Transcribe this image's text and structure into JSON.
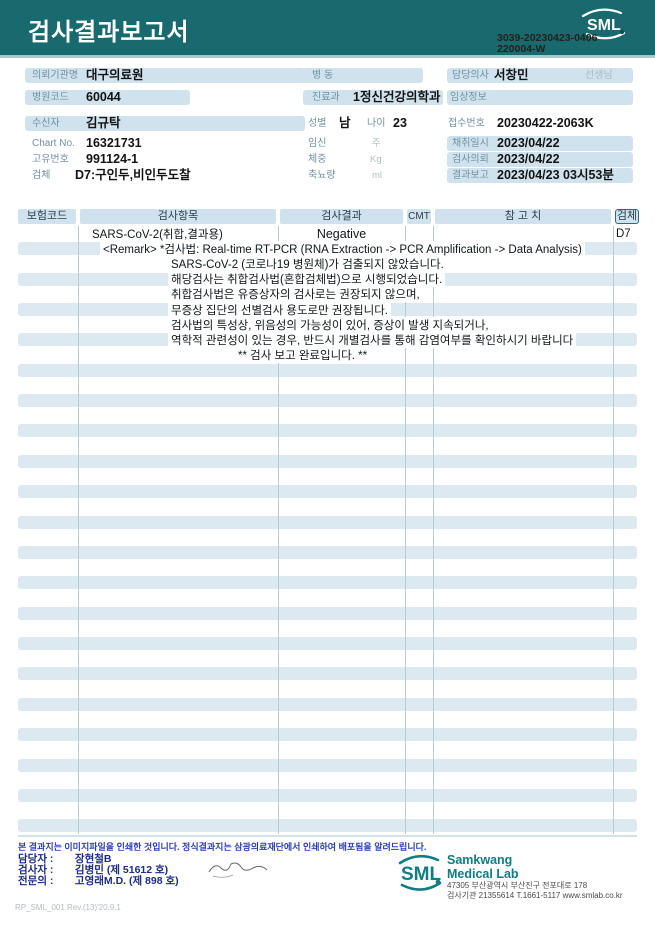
{
  "banner": {
    "title": "검사결과보고서",
    "logo_text": "SML",
    "doc_no_1": "3039-20230423-0406",
    "doc_no_2": "220004-W"
  },
  "fields": {
    "left": {
      "org_label": "의뢰기관명",
      "org_value": "대구의료원",
      "hospital_code_label": "병원코드",
      "hospital_code_value": "60044",
      "recipient_label": "수신자",
      "recipient_value": "김규탁",
      "chart_label": "Chart No.",
      "chart_value": "16321731",
      "uid_label": "고유번호",
      "uid_value": "991124-1",
      "specimen_label": "검체",
      "specimen_value": "D7:구인두,비인두도찰"
    },
    "middle": {
      "ward_label": "병  동",
      "dept_label": "진료과",
      "dept_value": "1정신건강의학과",
      "sex_label": "성별",
      "sex_value": "남",
      "age_label": "나이",
      "age_value": "23",
      "pregnancy_label": "임신",
      "pregnancy_unit": "주",
      "weight_label": "체중",
      "weight_unit": "Kg",
      "urine_label": "축뇨량",
      "urine_unit": "ml"
    },
    "right": {
      "doctor_label": "담당의사",
      "doctor_value": "서창민",
      "doctor_suffix": "선생님",
      "clinical_label": "임상정보",
      "receipt_label": "접수번호",
      "receipt_value": "20230422-2063K",
      "collected_label": "채취일시",
      "collected_value": "2023/04/22",
      "requested_label": "검사의뢰",
      "requested_value": "2023/04/22",
      "reported_label": "결과보고",
      "reported_value": "2023/04/23 03시53분"
    }
  },
  "table": {
    "headers": [
      "보험코드",
      "검사항목",
      "검사결과",
      "CMT",
      "참 고 치",
      "검체"
    ],
    "result_row": {
      "test_name": "SARS-CoV-2(취합,결과용)",
      "result": "Negative",
      "specimen": "D7"
    },
    "remarks": [
      "<Remark> *검사법: Real-time RT-PCR (RNA Extraction -> PCR Amplification -> Data Analysis)",
      "SARS-CoV-2 (코로나19 병원체)가 검출되지 않았습니다.",
      "해당검사는 취합검사법(혼합검체법)으로 시행되었습니다.",
      "취합검사법은 유증상자의 검사로는 권장되지 않으며,",
      "무증상 집단의 선별검사 용도로만 권장됩니다.",
      "검사법의 특성상, 위음성의 가능성이 있어, 증상이 발생 지속되거나,",
      "역학적 관련성이 있는 경우, 반드시 개별검사를 통해 감염여부를 확인하시기 바랍니다",
      "** 검사 보고 완료입니다. **"
    ],
    "empty_row_count": 31
  },
  "footer": {
    "note": "본 결과지는 이미지파일을 인쇄한 것입니다. 정식결과지는 삼광의료재단에서 인쇄하여 배포됨을 알려드립니다.",
    "staff_label": "담당자 :",
    "staff_value": "장현철B",
    "examiner_label": "검사자 :",
    "examiner_value": "김병민 (제 51612 호)",
    "specialist_label": "전문의 :",
    "specialist_value": "고영래M.D. (제 898 호)",
    "form_code": "RP_SML_001 Rev.(13)'20.9.1",
    "logo_text": "SML",
    "lab_name_1": "Samkwang",
    "lab_name_2": "Medical Lab",
    "address": "47305 부산광역시 부산진구 전포대로 178",
    "contact": "검사기관 21355614 T.1661-5117 www.smlab.co.kr"
  },
  "colors": {
    "banner_teal": "#186a6f",
    "chip_blue": "#cfe2ed",
    "stripe_blue": "#dde9f0",
    "logo_teal": "#0f7d82",
    "footer_navy": "#1e2c86",
    "note_blue": "#2d3fb5"
  }
}
